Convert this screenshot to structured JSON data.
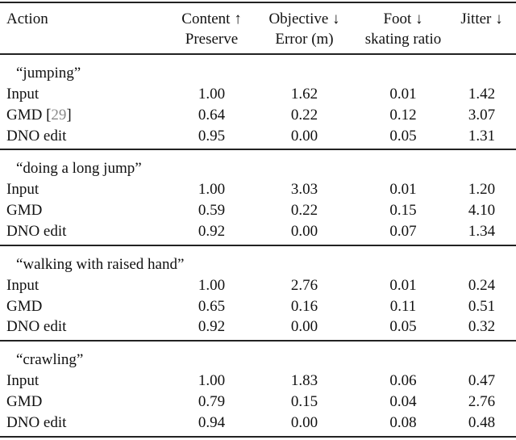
{
  "headers": {
    "action": "Action",
    "content": [
      "Content ↑",
      "Preserve"
    ],
    "objective": [
      "Objective ↓",
      "Error (m)"
    ],
    "foot": [
      "Foot ↓",
      "skating ratio"
    ],
    "jitter": [
      "Jitter ↓"
    ]
  },
  "groups": [
    {
      "label": "“jumping”",
      "rows": [
        {
          "method": "Input",
          "ref": "",
          "values": [
            "1.00",
            "1.62",
            "0.01",
            "1.42"
          ]
        },
        {
          "method": "GMD",
          "ref": "29",
          "values": [
            "0.64",
            "0.22",
            "0.12",
            "3.07"
          ]
        },
        {
          "method": "DNO edit",
          "ref": "",
          "values": [
            "0.95",
            "0.00",
            "0.05",
            "1.31"
          ]
        }
      ]
    },
    {
      "label": "“doing a long jump”",
      "rows": [
        {
          "method": "Input",
          "ref": "",
          "values": [
            "1.00",
            "3.03",
            "0.01",
            "1.20"
          ]
        },
        {
          "method": "GMD",
          "ref": "",
          "values": [
            "0.59",
            "0.22",
            "0.15",
            "4.10"
          ]
        },
        {
          "method": "DNO edit",
          "ref": "",
          "values": [
            "0.92",
            "0.00",
            "0.07",
            "1.34"
          ]
        }
      ]
    },
    {
      "label": "“walking with raised hand”",
      "rows": [
        {
          "method": "Input",
          "ref": "",
          "values": [
            "1.00",
            "2.76",
            "0.01",
            "0.24"
          ]
        },
        {
          "method": "GMD",
          "ref": "",
          "values": [
            "0.65",
            "0.16",
            "0.11",
            "0.51"
          ]
        },
        {
          "method": "DNO edit",
          "ref": "",
          "values": [
            "0.92",
            "0.00",
            "0.05",
            "0.32"
          ]
        }
      ]
    },
    {
      "label": "“crawling”",
      "rows": [
        {
          "method": "Input",
          "ref": "",
          "values": [
            "1.00",
            "1.83",
            "0.06",
            "0.47"
          ]
        },
        {
          "method": "GMD",
          "ref": "",
          "values": [
            "0.79",
            "0.15",
            "0.04",
            "2.76"
          ]
        },
        {
          "method": "DNO edit",
          "ref": "",
          "values": [
            "0.94",
            "0.00",
            "0.08",
            "0.48"
          ]
        }
      ]
    }
  ],
  "colors": {
    "citation": "#888888",
    "rule": "#222222"
  }
}
